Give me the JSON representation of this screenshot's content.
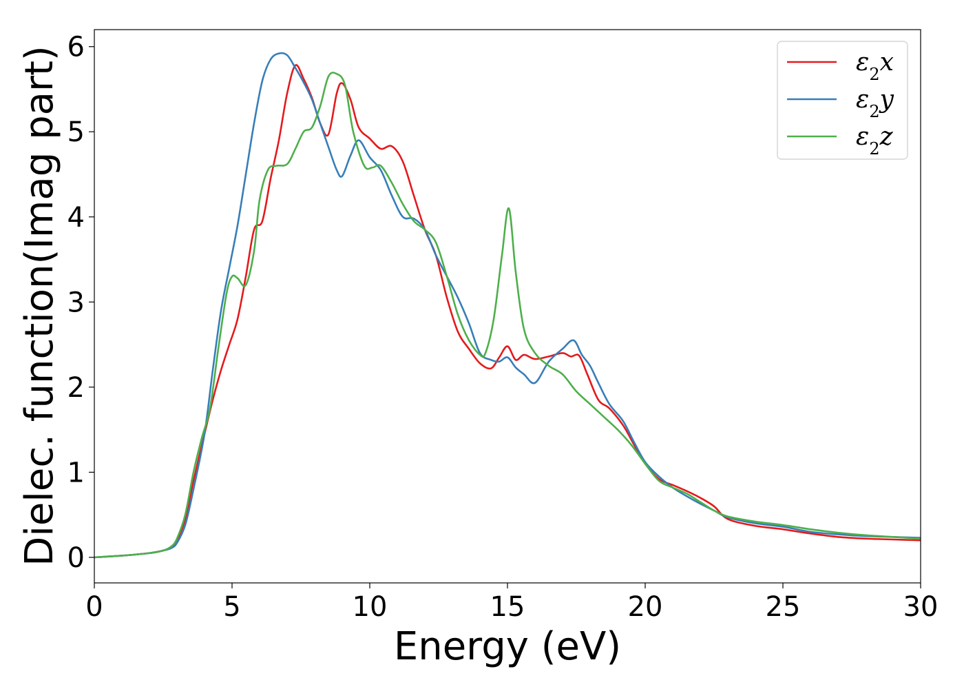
{
  "chart_data": {
    "type": "line",
    "xlabel": "Energy (eV)",
    "ylabel": "Dielec. function(Imag part)",
    "xlim": [
      0,
      30
    ],
    "ylim": [
      -0.3,
      6.2
    ],
    "xticks": [
      0,
      5,
      10,
      15,
      20,
      25,
      30
    ],
    "yticks": [
      0,
      1,
      2,
      3,
      4,
      5,
      6
    ],
    "legend_position": "top-right",
    "grid": false,
    "series": [
      {
        "name": "ε₂x",
        "legend_base": "ε",
        "legend_sub": "2",
        "legend_suffix": "x",
        "color": "#e41a1c",
        "x": [
          0,
          1,
          2,
          2.5,
          2.8,
          3,
          3.3,
          3.6,
          4,
          4.3,
          4.6,
          4.9,
          5.2,
          5.5,
          5.8,
          6.1,
          6.4,
          6.7,
          7,
          7.3,
          7.6,
          7.9,
          8.2,
          8.5,
          8.8,
          9.0,
          9.3,
          9.6,
          10.0,
          10.4,
          10.8,
          11.2,
          11.6,
          12.0,
          12.4,
          12.8,
          13.2,
          13.6,
          14.0,
          14.4,
          14.7,
          15.0,
          15.3,
          15.6,
          16.0,
          16.5,
          17.0,
          17.3,
          17.6,
          17.9,
          18.3,
          18.7,
          19.2,
          19.6,
          20.0,
          20.5,
          21.0,
          21.5,
          22.0,
          22.5,
          23.0,
          24.0,
          25.0,
          26.0,
          27.0,
          28.0,
          29.0,
          30.0
        ],
        "y": [
          0,
          0.02,
          0.05,
          0.08,
          0.12,
          0.2,
          0.45,
          0.9,
          1.45,
          1.85,
          2.2,
          2.5,
          2.8,
          3.3,
          3.85,
          3.95,
          4.45,
          4.9,
          5.45,
          5.78,
          5.62,
          5.4,
          5.1,
          4.97,
          5.45,
          5.57,
          5.38,
          5.05,
          4.92,
          4.8,
          4.83,
          4.65,
          4.25,
          3.85,
          3.55,
          3.05,
          2.65,
          2.45,
          2.28,
          2.22,
          2.35,
          2.48,
          2.32,
          2.38,
          2.33,
          2.36,
          2.4,
          2.36,
          2.37,
          2.15,
          1.85,
          1.75,
          1.55,
          1.32,
          1.1,
          0.92,
          0.85,
          0.78,
          0.7,
          0.6,
          0.45,
          0.37,
          0.33,
          0.28,
          0.24,
          0.22,
          0.21,
          0.2
        ]
      },
      {
        "name": "ε₂y",
        "legend_base": "ε",
        "legend_sub": "2",
        "legend_suffix": "y",
        "color": "#377eb8",
        "x": [
          0,
          1,
          2,
          2.5,
          2.8,
          3,
          3.3,
          3.6,
          4,
          4.3,
          4.6,
          4.9,
          5.2,
          5.5,
          5.8,
          6.1,
          6.4,
          6.7,
          7,
          7.3,
          7.6,
          7.9,
          8.2,
          8.5,
          8.8,
          9.0,
          9.3,
          9.6,
          10.0,
          10.4,
          10.8,
          11.2,
          11.6,
          12.0,
          12.4,
          12.8,
          13.2,
          13.6,
          14.0,
          14.4,
          14.7,
          15.0,
          15.3,
          15.6,
          16.0,
          16.5,
          17.0,
          17.4,
          17.7,
          18.0,
          18.3,
          18.7,
          19.2,
          19.6,
          20.0,
          20.5,
          21.0,
          21.5,
          22.0,
          22.5,
          23.0,
          24.0,
          25.0,
          26.0,
          27.0,
          28.0,
          29.0,
          30.0
        ],
        "y": [
          0,
          0.02,
          0.05,
          0.08,
          0.11,
          0.17,
          0.38,
          0.8,
          1.45,
          2.2,
          2.9,
          3.4,
          3.9,
          4.5,
          5.1,
          5.6,
          5.85,
          5.92,
          5.9,
          5.75,
          5.58,
          5.38,
          5.1,
          4.82,
          4.55,
          4.48,
          4.72,
          4.9,
          4.7,
          4.55,
          4.25,
          4.0,
          3.98,
          3.85,
          3.55,
          3.3,
          3.05,
          2.75,
          2.4,
          2.32,
          2.3,
          2.35,
          2.23,
          2.15,
          2.05,
          2.3,
          2.45,
          2.55,
          2.38,
          2.25,
          2.05,
          1.8,
          1.6,
          1.35,
          1.12,
          0.95,
          0.82,
          0.72,
          0.63,
          0.55,
          0.47,
          0.4,
          0.36,
          0.3,
          0.27,
          0.25,
          0.24,
          0.23
        ]
      },
      {
        "name": "ε₂z",
        "legend_base": "ε",
        "legend_sub": "2",
        "legend_suffix": "z",
        "color": "#4daf4a",
        "x": [
          0,
          1,
          2,
          2.5,
          2.8,
          3,
          3.3,
          3.6,
          3.9,
          4.2,
          4.5,
          4.8,
          5.0,
          5.2,
          5.5,
          5.8,
          6.0,
          6.3,
          6.6,
          7.0,
          7.3,
          7.6,
          7.9,
          8.2,
          8.5,
          8.8,
          9.1,
          9.4,
          9.8,
          10.1,
          10.4,
          10.8,
          11.2,
          11.6,
          12.0,
          12.4,
          12.8,
          13.2,
          13.6,
          14.0,
          14.2,
          14.5,
          14.8,
          15.05,
          15.3,
          15.6,
          16.0,
          16.5,
          17.0,
          17.5,
          18.0,
          18.5,
          19.0,
          19.5,
          20.0,
          20.5,
          21.0,
          21.5,
          22.0,
          22.5,
          23.0,
          24.0,
          25.0,
          26.0,
          27.0,
          28.0,
          29.0,
          30.0
        ],
        "y": [
          0,
          0.02,
          0.05,
          0.08,
          0.13,
          0.22,
          0.5,
          1.0,
          1.4,
          1.75,
          2.45,
          3.1,
          3.3,
          3.28,
          3.2,
          3.6,
          4.2,
          4.55,
          4.6,
          4.62,
          4.8,
          5.0,
          5.05,
          5.3,
          5.65,
          5.68,
          5.55,
          5.0,
          4.6,
          4.58,
          4.6,
          4.4,
          4.15,
          3.95,
          3.85,
          3.7,
          3.3,
          2.85,
          2.55,
          2.38,
          2.4,
          2.8,
          3.55,
          4.1,
          3.35,
          2.68,
          2.4,
          2.25,
          2.15,
          1.95,
          1.8,
          1.65,
          1.5,
          1.32,
          1.1,
          0.9,
          0.82,
          0.75,
          0.65,
          0.55,
          0.48,
          0.42,
          0.38,
          0.33,
          0.29,
          0.26,
          0.24,
          0.22
        ]
      }
    ]
  }
}
